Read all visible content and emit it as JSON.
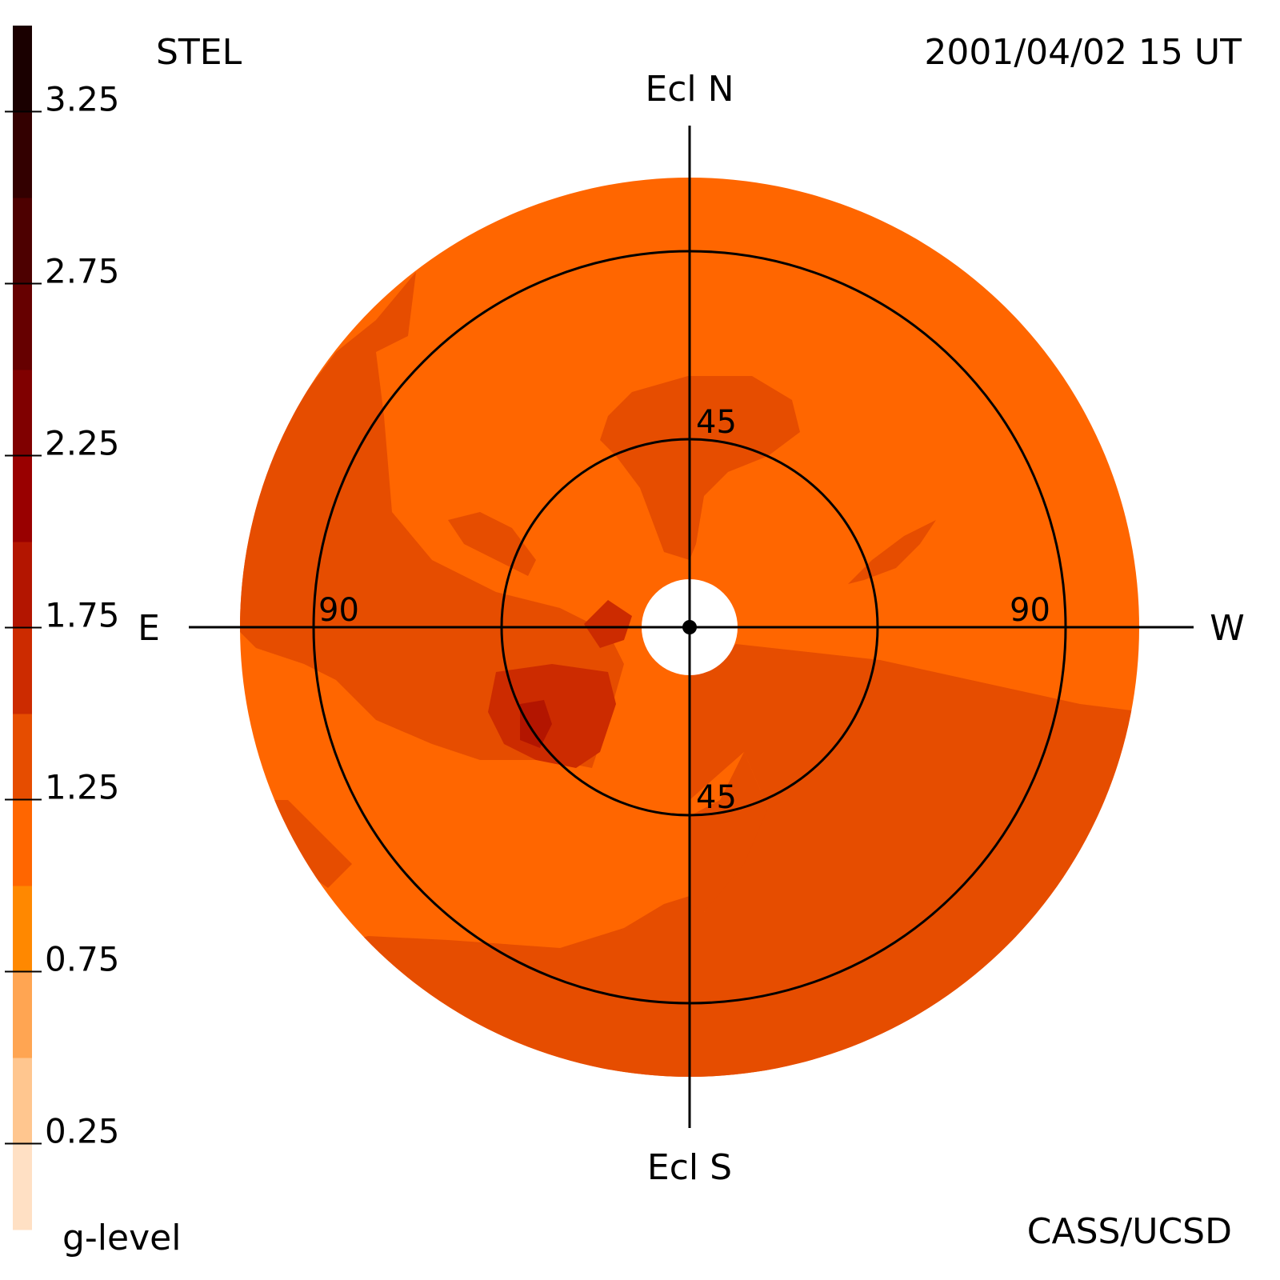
{
  "header": {
    "left_label": "STEL",
    "right_label": "2001/04/02 15 UT"
  },
  "footer": {
    "left_label": "g-level",
    "right_label": "CASS/UCSD"
  },
  "directions": {
    "north": "Ecl N",
    "south": "Ecl S",
    "east": "E",
    "west": "W"
  },
  "chart_data": {
    "type": "heatmap",
    "projection": "polar sky map, ecliptic orientation",
    "title": "",
    "colorbar": {
      "label": "g-level",
      "min": 0,
      "max": 3.5,
      "ticks": [
        {
          "value": 0.25,
          "label": "0.25"
        },
        {
          "value": 0.75,
          "label": "0.75"
        },
        {
          "value": 1.25,
          "label": "1.25"
        },
        {
          "value": 1.75,
          "label": "1.75"
        },
        {
          "value": 2.25,
          "label": "2.25"
        },
        {
          "value": 2.75,
          "label": "2.75"
        },
        {
          "value": 3.25,
          "label": "3.25"
        }
      ],
      "steps": [
        {
          "from": 0.0,
          "to": 0.25,
          "color": "#ffe0c4"
        },
        {
          "from": 0.25,
          "to": 0.5,
          "color": "#ffc68f"
        },
        {
          "from": 0.5,
          "to": 0.75,
          "color": "#ffa552"
        },
        {
          "from": 0.75,
          "to": 1.0,
          "color": "#ff8800"
        },
        {
          "from": 1.0,
          "to": 1.25,
          "color": "#ff6600"
        },
        {
          "from": 1.25,
          "to": 1.5,
          "color": "#e64d00"
        },
        {
          "from": 1.5,
          "to": 1.75,
          "color": "#cc2b00"
        },
        {
          "from": 1.75,
          "to": 2.0,
          "color": "#b31500"
        },
        {
          "from": 2.0,
          "to": 2.25,
          "color": "#990000"
        },
        {
          "from": 2.25,
          "to": 2.5,
          "color": "#800000"
        },
        {
          "from": 2.5,
          "to": 2.75,
          "color": "#660000"
        },
        {
          "from": 2.75,
          "to": 3.0,
          "color": "#4d0000"
        },
        {
          "from": 3.0,
          "to": 3.25,
          "color": "#330000"
        },
        {
          "from": 3.25,
          "to": 3.5,
          "color": "#1a0000"
        }
      ]
    },
    "elongation_rings": [
      {
        "value": 45,
        "labels": [
          "45",
          "45"
        ]
      },
      {
        "value": 90,
        "labels": [
          "90",
          "90"
        ]
      }
    ],
    "max_elongation": 120,
    "colors": {
      "base": "#ff6600",
      "level_1_25": "#e64d00",
      "level_1_5": "#cc2b00",
      "level_1_75": "#b31500"
    }
  }
}
